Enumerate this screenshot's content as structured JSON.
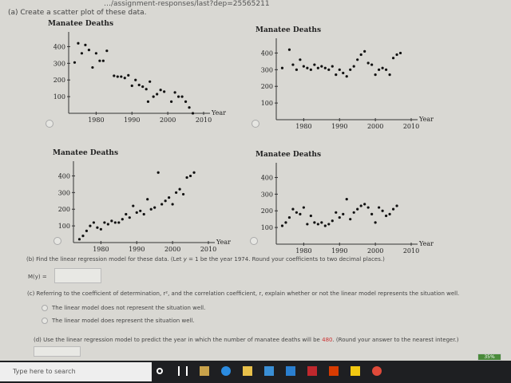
{
  "browser": {
    "url_fragment": "…/assignment-responses/last?dep=25565211"
  },
  "part_a": {
    "prompt": "(a) Create a scatter plot of these data."
  },
  "chart_data": [
    {
      "type": "scatter",
      "title": "Manatee Deaths",
      "xlabel": "Year",
      "ylabel": "",
      "xlim": [
        1971,
        2010
      ],
      "ylim": [
        0,
        450
      ],
      "xticks": [
        1980,
        1990,
        2000,
        2010
      ],
      "yticks": [
        100,
        200,
        300,
        400
      ],
      "x": [
        1974,
        1975,
        1976,
        1977,
        1978,
        1979,
        1980,
        1981,
        1982,
        1983,
        1985,
        1986,
        1987,
        1988,
        1989,
        1990,
        1991,
        1992,
        1993,
        1994,
        1994.5,
        1995,
        1996,
        1997,
        1998,
        1999,
        2001,
        2002,
        2003,
        2004,
        2005,
        2006,
        2007
      ],
      "y": [
        305,
        420,
        360,
        410,
        380,
        275,
        360,
        315,
        315,
        375,
        225,
        220,
        220,
        212,
        228,
        165,
        200,
        170,
        160,
        145,
        70,
        190,
        100,
        115,
        140,
        130,
        70,
        125,
        100,
        100,
        70,
        35,
        0
      ]
    },
    {
      "type": "scatter",
      "title": "Manatee Deaths",
      "xlabel": "Year",
      "ylabel": "",
      "xlim": [
        1971,
        2010
      ],
      "ylim": [
        0,
        450
      ],
      "xticks": [
        1980,
        1990,
        2000,
        2010
      ],
      "yticks": [
        100,
        200,
        300,
        400
      ],
      "x": [
        1974,
        1976,
        1977,
        1978,
        1979,
        1980,
        1981,
        1982,
        1983,
        1984,
        1985,
        1986,
        1987,
        1988,
        1989,
        1990,
        1991,
        1992,
        1993,
        1994,
        1995,
        1996,
        1997,
        1998,
        1999,
        2000,
        2001,
        2002,
        2003,
        2004,
        2005,
        2006,
        2007
      ],
      "y": [
        310,
        420,
        330,
        300,
        360,
        320,
        310,
        300,
        330,
        310,
        320,
        310,
        300,
        320,
        270,
        300,
        280,
        260,
        300,
        320,
        360,
        390,
        410,
        340,
        330,
        270,
        300,
        310,
        300,
        270,
        370,
        390,
        400
      ]
    },
    {
      "type": "scatter",
      "title": "Manatee Deaths",
      "xlabel": "Year",
      "ylabel": "",
      "xlim": [
        1971,
        2010
      ],
      "ylim": [
        0,
        450
      ],
      "xticks": [
        1980,
        1990,
        2000,
        2010
      ],
      "yticks": [
        100,
        200,
        300,
        400
      ],
      "x": [
        1974,
        1975,
        1976,
        1977,
        1978,
        1979,
        1980,
        1981,
        1982,
        1983,
        1984,
        1985,
        1986,
        1987,
        1988,
        1989,
        1990,
        1991,
        1992,
        1993,
        1994,
        1995,
        1996,
        1997,
        1998,
        1999,
        2000,
        2001,
        2002,
        2003,
        2004,
        2005,
        2006
      ],
      "y": [
        20,
        40,
        70,
        100,
        120,
        90,
        80,
        120,
        110,
        130,
        120,
        120,
        140,
        170,
        150,
        220,
        180,
        190,
        170,
        260,
        200,
        210,
        420,
        230,
        250,
        270,
        230,
        300,
        320,
        290,
        390,
        400,
        420
      ]
    },
    {
      "type": "scatter",
      "title": "Manatee Deaths",
      "xlabel": "Year",
      "ylabel": "",
      "xlim": [
        1971,
        2010
      ],
      "ylim": [
        0,
        450
      ],
      "xticks": [
        1980,
        1990,
        2000,
        2010
      ],
      "yticks": [
        100,
        200,
        300,
        400
      ],
      "x": [
        1974,
        1975,
        1976,
        1977,
        1978,
        1979,
        1980,
        1981,
        1982,
        1983,
        1984,
        1985,
        1986,
        1987,
        1988,
        1989,
        1990,
        1991,
        1992,
        1993,
        1994,
        1995,
        1996,
        1997,
        1998,
        1999,
        2000,
        2001,
        2002,
        2003,
        2004,
        2005,
        2006
      ],
      "y": [
        110,
        130,
        160,
        210,
        190,
        180,
        220,
        120,
        170,
        130,
        120,
        130,
        110,
        120,
        140,
        190,
        160,
        180,
        270,
        150,
        190,
        210,
        230,
        240,
        220,
        180,
        130,
        220,
        200,
        170,
        180,
        210,
        230
      ]
    }
  ],
  "part_b": {
    "prompt_pre": "(b) Find the linear regression model for these data. (Let",
    "var": "y",
    "prompt_mid": "= 1  be the year 1974. Round your coefficients to two decimal places.)",
    "label": "M(y) =",
    "value": ""
  },
  "part_c": {
    "prompt": "(c) Referring to the coefficient of determination, r², and the correlation coefficient, r, explain whether or not the linear model represents the situation well.",
    "options": [
      "The linear model does not represent the situation well.",
      "The linear model does represent the situation well."
    ]
  },
  "part_d": {
    "prompt_pre": "(d) Use the linear regression model to predict the year in which the number of manatee deaths will be",
    "highlight": "480",
    "prompt_post": ". (Round your answer to the nearest integer.)",
    "value": ""
  },
  "taskbar": {
    "search_placeholder": "Type here to search",
    "battery": "35%",
    "icons": [
      "cortana-icon",
      "task-view-icon",
      "store-icon",
      "edge-icon",
      "file-explorer-icon",
      "mail-icon",
      "app-l-icon",
      "mcafee-icon",
      "office-icon",
      "sticky-notes-icon",
      "chrome-icon"
    ]
  }
}
